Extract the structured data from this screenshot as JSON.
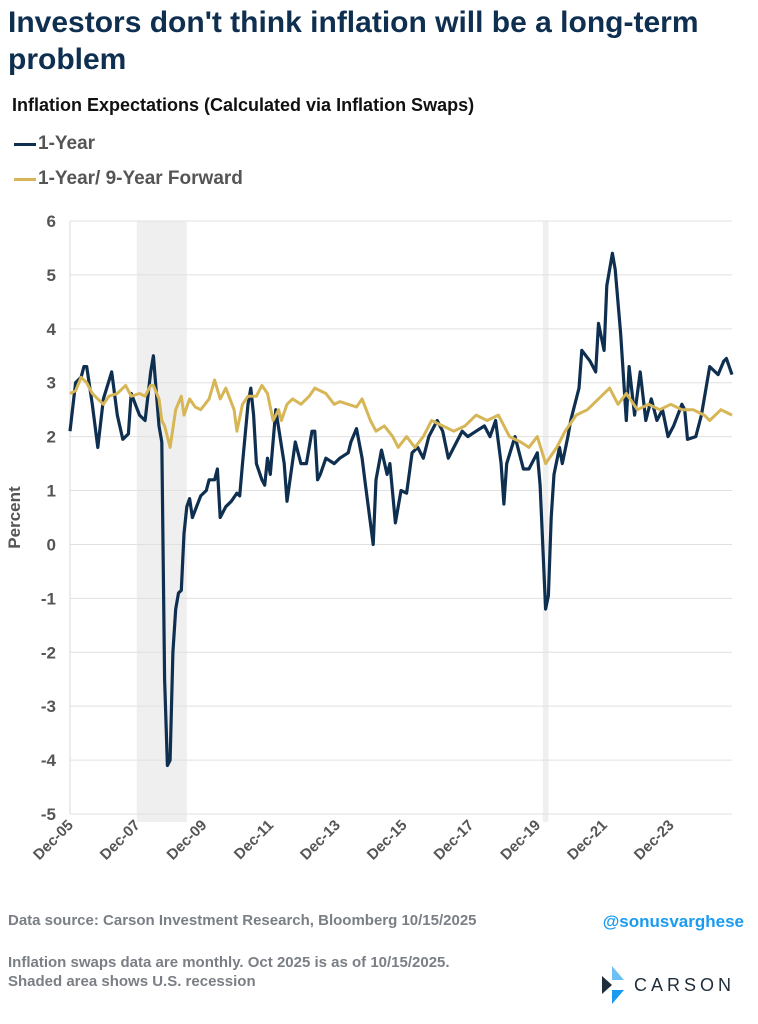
{
  "title": "Investors don't think inflation will be a long-term problem",
  "chart_data": {
    "type": "line",
    "title": "Inflation Expectations (Calculated via Inflation Swaps)",
    "xlabel": "",
    "ylabel": "Percent",
    "ylim": [
      -5,
      6
    ],
    "yticks": [
      "6",
      "5",
      "4",
      "3",
      "2",
      "1",
      "0",
      "-1",
      "-2",
      "-3",
      "-4",
      "-5"
    ],
    "x_unit": "months since Dec-05",
    "xlim": [
      0,
      238
    ],
    "xticks": [
      {
        "label": "Dec-05",
        "m": 0
      },
      {
        "label": "Dec-07",
        "m": 24
      },
      {
        "label": "Dec-09",
        "m": 48
      },
      {
        "label": "Dec-11",
        "m": 72
      },
      {
        "label": "Dec-13",
        "m": 96
      },
      {
        "label": "Dec-15",
        "m": 120
      },
      {
        "label": "Dec-17",
        "m": 144
      },
      {
        "label": "Dec-19",
        "m": 168
      },
      {
        "label": "Dec-21",
        "m": 192
      },
      {
        "label": "Dec-23",
        "m": 216
      }
    ],
    "grid": true,
    "legend_position": "top-left",
    "recessions": [
      [
        24,
        42
      ],
      [
        170,
        172
      ]
    ],
    "series": [
      {
        "name": "1-Year",
        "color": "#0e2f4f",
        "points": [
          [
            0,
            2.1
          ],
          [
            2,
            3.0
          ],
          [
            4,
            3.1
          ],
          [
            5,
            3.3
          ],
          [
            6,
            3.3
          ],
          [
            8,
            2.6
          ],
          [
            10,
            1.8
          ],
          [
            12,
            2.7
          ],
          [
            15,
            3.2
          ],
          [
            17,
            2.4
          ],
          [
            19,
            1.95
          ],
          [
            21,
            2.05
          ],
          [
            22,
            2.8
          ],
          [
            25,
            2.4
          ],
          [
            27,
            2.3
          ],
          [
            29,
            3.2
          ],
          [
            30,
            3.5
          ],
          [
            32,
            2.2
          ],
          [
            33,
            1.9
          ],
          [
            34,
            -2.5
          ],
          [
            35,
            -4.1
          ],
          [
            36,
            -4.0
          ],
          [
            37,
            -2.0
          ],
          [
            38,
            -1.2
          ],
          [
            39,
            -0.9
          ],
          [
            40,
            -0.85
          ],
          [
            41,
            0.2
          ],
          [
            42,
            0.7
          ],
          [
            43,
            0.85
          ],
          [
            44,
            0.5
          ],
          [
            47,
            0.9
          ],
          [
            49,
            1.0
          ],
          [
            50,
            1.2
          ],
          [
            52,
            1.2
          ],
          [
            53,
            1.4
          ],
          [
            54,
            0.5
          ],
          [
            56,
            0.7
          ],
          [
            58,
            0.8
          ],
          [
            60,
            0.95
          ],
          [
            61,
            0.9
          ],
          [
            62,
            1.5
          ],
          [
            64,
            2.6
          ],
          [
            65,
            2.9
          ],
          [
            66,
            2.4
          ],
          [
            67,
            1.5
          ],
          [
            69,
            1.2
          ],
          [
            70,
            1.1
          ],
          [
            71,
            1.6
          ],
          [
            72,
            1.3
          ],
          [
            74,
            2.5
          ],
          [
            77,
            1.5
          ],
          [
            78,
            0.8
          ],
          [
            81,
            1.9
          ],
          [
            83,
            1.5
          ],
          [
            85,
            1.5
          ],
          [
            87,
            2.1
          ],
          [
            88,
            2.1
          ],
          [
            89,
            1.2
          ],
          [
            90,
            1.3
          ],
          [
            92,
            1.6
          ],
          [
            95,
            1.5
          ],
          [
            97,
            1.6
          ],
          [
            100,
            1.7
          ],
          [
            101,
            1.9
          ],
          [
            103,
            2.15
          ],
          [
            105,
            1.6
          ],
          [
            106,
            1.2
          ],
          [
            109,
            0.0
          ],
          [
            110,
            1.2
          ],
          [
            112,
            1.75
          ],
          [
            114,
            1.3
          ],
          [
            115,
            1.5
          ],
          [
            117,
            0.4
          ],
          [
            119,
            1.0
          ],
          [
            121,
            0.95
          ],
          [
            123,
            1.7
          ],
          [
            125,
            1.8
          ],
          [
            127,
            1.6
          ],
          [
            129,
            2.0
          ],
          [
            132,
            2.3
          ],
          [
            134,
            2.1
          ],
          [
            136,
            1.6
          ],
          [
            138,
            1.8
          ],
          [
            141,
            2.1
          ],
          [
            143,
            2.0
          ],
          [
            146,
            2.1
          ],
          [
            149,
            2.2
          ],
          [
            151,
            2.0
          ],
          [
            153,
            2.3
          ],
          [
            155,
            1.5
          ],
          [
            156,
            0.75
          ],
          [
            157,
            1.5
          ],
          [
            160,
            2.0
          ],
          [
            163,
            1.4
          ],
          [
            165,
            1.4
          ],
          [
            168,
            1.7
          ],
          [
            169,
            1.1
          ],
          [
            171,
            -1.2
          ],
          [
            172,
            -0.95
          ],
          [
            173,
            0.5
          ],
          [
            174,
            1.3
          ],
          [
            176,
            1.8
          ],
          [
            177,
            1.5
          ],
          [
            179,
            2.0
          ],
          [
            180,
            2.3
          ],
          [
            183,
            2.9
          ],
          [
            184,
            3.6
          ],
          [
            187,
            3.4
          ],
          [
            189,
            3.2
          ],
          [
            190,
            4.1
          ],
          [
            192,
            3.6
          ],
          [
            193,
            4.8
          ],
          [
            195,
            5.4
          ],
          [
            196,
            5.1
          ],
          [
            198,
            3.9
          ],
          [
            200,
            2.3
          ],
          [
            201,
            3.3
          ],
          [
            203,
            2.4
          ],
          [
            205,
            3.2
          ],
          [
            207,
            2.3
          ],
          [
            209,
            2.7
          ],
          [
            211,
            2.3
          ],
          [
            213,
            2.5
          ],
          [
            215,
            2.0
          ],
          [
            217,
            2.2
          ],
          [
            220,
            2.6
          ],
          [
            221,
            2.5
          ],
          [
            222,
            1.95
          ],
          [
            225,
            2.0
          ],
          [
            227,
            2.4
          ],
          [
            228,
            2.7
          ],
          [
            230,
            3.3
          ],
          [
            233,
            3.15
          ],
          [
            235,
            3.4
          ],
          [
            236,
            3.45
          ],
          [
            238,
            3.15
          ]
        ]
      },
      {
        "name": "1-Year/ 9-Year Forward",
        "color": "#d6b656",
        "points": [
          [
            0,
            2.8
          ],
          [
            2,
            2.85
          ],
          [
            4,
            3.1
          ],
          [
            6,
            3.0
          ],
          [
            8,
            2.8
          ],
          [
            10,
            2.7
          ],
          [
            12,
            2.6
          ],
          [
            14,
            2.75
          ],
          [
            17,
            2.8
          ],
          [
            20,
            2.95
          ],
          [
            22,
            2.75
          ],
          [
            25,
            2.8
          ],
          [
            27,
            2.75
          ],
          [
            29,
            2.95
          ],
          [
            30,
            2.95
          ],
          [
            32,
            2.7
          ],
          [
            33,
            2.3
          ],
          [
            34,
            2.2
          ],
          [
            36,
            1.8
          ],
          [
            38,
            2.5
          ],
          [
            40,
            2.75
          ],
          [
            41,
            2.4
          ],
          [
            43,
            2.7
          ],
          [
            45,
            2.55
          ],
          [
            47,
            2.5
          ],
          [
            50,
            2.7
          ],
          [
            52,
            3.05
          ],
          [
            54,
            2.7
          ],
          [
            56,
            2.9
          ],
          [
            59,
            2.5
          ],
          [
            60,
            2.1
          ],
          [
            62,
            2.6
          ],
          [
            64,
            2.75
          ],
          [
            67,
            2.75
          ],
          [
            69,
            2.95
          ],
          [
            71,
            2.8
          ],
          [
            73,
            2.3
          ],
          [
            75,
            2.5
          ],
          [
            76,
            2.3
          ],
          [
            78,
            2.6
          ],
          [
            80,
            2.7
          ],
          [
            83,
            2.6
          ],
          [
            86,
            2.75
          ],
          [
            88,
            2.9
          ],
          [
            92,
            2.8
          ],
          [
            95,
            2.6
          ],
          [
            97,
            2.65
          ],
          [
            100,
            2.6
          ],
          [
            103,
            2.55
          ],
          [
            105,
            2.7
          ],
          [
            108,
            2.3
          ],
          [
            110,
            2.1
          ],
          [
            113,
            2.2
          ],
          [
            116,
            2.0
          ],
          [
            118,
            1.8
          ],
          [
            121,
            2.0
          ],
          [
            124,
            1.8
          ],
          [
            127,
            2.0
          ],
          [
            130,
            2.3
          ],
          [
            134,
            2.2
          ],
          [
            138,
            2.1
          ],
          [
            142,
            2.2
          ],
          [
            146,
            2.4
          ],
          [
            150,
            2.3
          ],
          [
            154,
            2.4
          ],
          [
            158,
            2.0
          ],
          [
            162,
            1.9
          ],
          [
            165,
            1.8
          ],
          [
            168,
            2.0
          ],
          [
            171,
            1.5
          ],
          [
            175,
            1.8
          ],
          [
            178,
            2.1
          ],
          [
            182,
            2.4
          ],
          [
            186,
            2.5
          ],
          [
            190,
            2.7
          ],
          [
            194,
            2.9
          ],
          [
            197,
            2.6
          ],
          [
            200,
            2.8
          ],
          [
            204,
            2.5
          ],
          [
            208,
            2.6
          ],
          [
            212,
            2.5
          ],
          [
            216,
            2.6
          ],
          [
            220,
            2.5
          ],
          [
            224,
            2.5
          ],
          [
            228,
            2.4
          ],
          [
            230,
            2.3
          ],
          [
            234,
            2.5
          ],
          [
            236,
            2.45
          ],
          [
            238,
            2.4
          ]
        ]
      }
    ]
  },
  "footer": {
    "source": "Data source: Carson Investment Research, Bloomberg   10/15/2025",
    "handle": "@sonusvarghese",
    "note1": "Inflation swaps data are monthly. Oct 2025 is as of 10/15/2025.",
    "note2": "Shaded area shows U.S. recession",
    "logo": "CARSON"
  }
}
